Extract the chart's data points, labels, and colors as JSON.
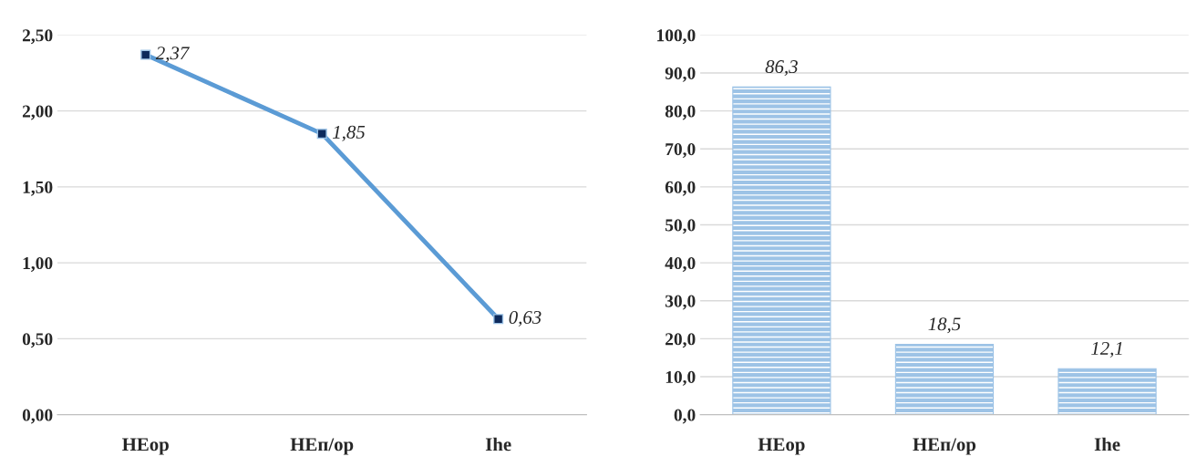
{
  "chart_data": [
    {
      "type": "line",
      "categories": [
        "НЕор",
        "НЕп/ор",
        "Іhe"
      ],
      "series": [
        {
          "color": "#5b9bd5",
          "values": [
            2.37,
            1.85,
            0.63
          ],
          "value_labels": [
            "2,37",
            "1,85",
            "0,63"
          ]
        }
      ],
      "ylim": [
        0,
        2.5
      ],
      "yticks": [
        {
          "value": 0,
          "label": "0,00"
        },
        {
          "value": 0.5,
          "label": "0,50"
        },
        {
          "value": 1,
          "label": "1,00"
        },
        {
          "value": 1.5,
          "label": "1,50"
        },
        {
          "value": 2,
          "label": "2,00"
        },
        {
          "value": 2.5,
          "label": "2,50"
        }
      ],
      "grid": "y",
      "marker": "square",
      "line_style": "solid"
    },
    {
      "type": "bar",
      "categories": [
        "НЕор",
        "НЕп/ор",
        "Іhe"
      ],
      "series": [
        {
          "color": "#9dc3e6",
          "values": [
            86.3,
            18.5,
            12.1
          ],
          "value_labels": [
            "86,3",
            "18,5",
            "12,1"
          ]
        }
      ],
      "ylim": [
        0,
        100
      ],
      "yticks": [
        {
          "value": 0,
          "label": "0,0"
        },
        {
          "value": 10,
          "label": "10,0"
        },
        {
          "value": 20,
          "label": "20,0"
        },
        {
          "value": 30,
          "label": "30,0"
        },
        {
          "value": 40,
          "label": "40,0"
        },
        {
          "value": 50,
          "label": "50,0"
        },
        {
          "value": 60,
          "label": "60,0"
        },
        {
          "value": 70,
          "label": "70,0"
        },
        {
          "value": 80,
          "label": "80,0"
        },
        {
          "value": 90,
          "label": "90,0"
        },
        {
          "value": 100,
          "label": "100,0"
        }
      ],
      "grid": "y"
    }
  ]
}
